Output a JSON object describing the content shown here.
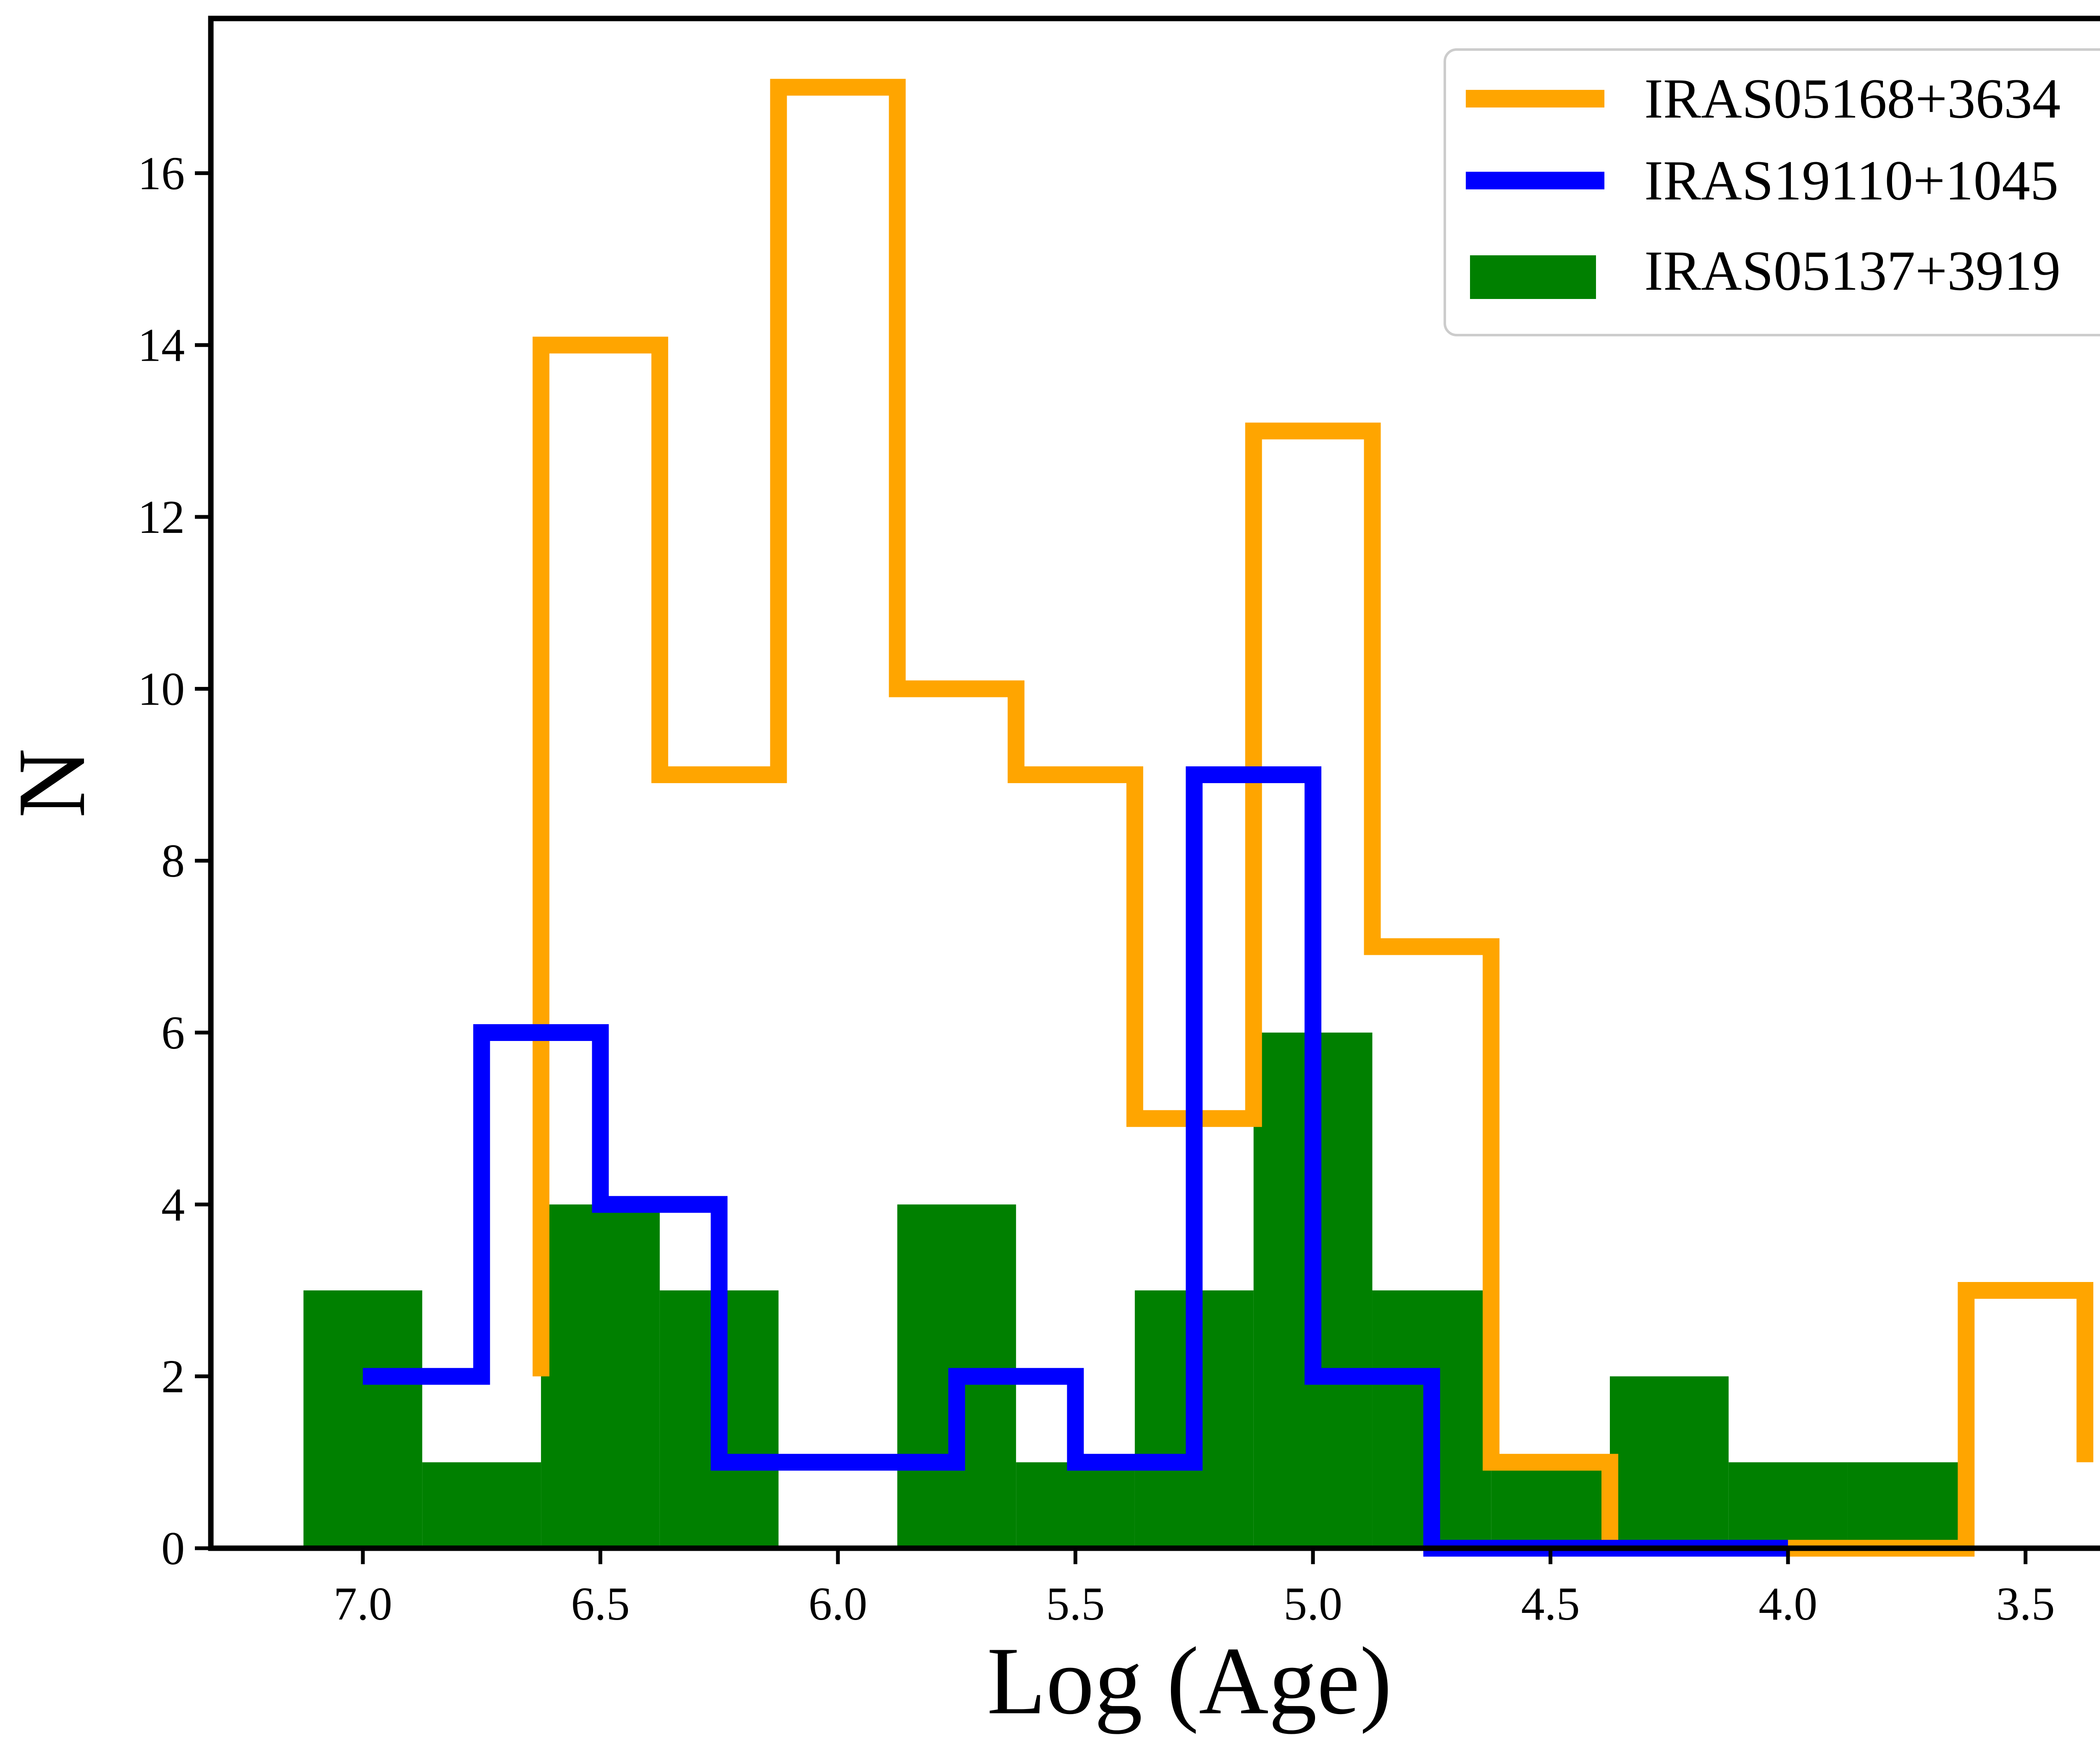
{
  "chart_data": {
    "type": "histogram",
    "xlabel": "Log (Age)",
    "ylabel": "N",
    "xlim": [
      7.32,
      3.2
    ],
    "ylim": [
      0,
      17.8
    ],
    "x_ticks": [
      7.0,
      6.5,
      6.0,
      5.5,
      5.0,
      4.5,
      4.0,
      3.5
    ],
    "x_tick_labels": [
      "7.0",
      "6.5",
      "6.0",
      "5.5",
      "5.0",
      "4.5",
      "4.0",
      "3.5"
    ],
    "y_ticks": [
      0,
      2,
      4,
      6,
      8,
      10,
      12,
      14,
      16
    ],
    "y_tick_labels": [
      "0",
      "2",
      "4",
      "6",
      "8",
      "10",
      "12",
      "14",
      "16"
    ],
    "legend_position": "top-right",
    "series": [
      {
        "name": "IRAS05168+3634",
        "style": "step",
        "color": "#FFA500",
        "bin_edges": [
          6.625,
          6.375,
          6.125,
          5.875,
          5.625,
          5.375,
          5.125,
          4.875,
          4.625,
          4.375,
          4.125,
          3.875,
          3.625,
          3.375
        ],
        "counts": [
          14,
          9,
          17,
          10,
          9,
          5,
          13,
          7,
          1,
          0,
          0,
          0,
          3
        ],
        "start_value": 2,
        "end_value": 1
      },
      {
        "name": "IRAS19110+1045",
        "style": "step",
        "color": "#0000FF",
        "bin_edges": [
          7.0,
          6.75,
          6.5,
          6.25,
          6.0,
          5.75,
          5.5,
          5.25,
          5.0,
          4.75,
          4.5,
          4.25,
          4.0
        ],
        "counts": [
          2,
          6,
          4,
          1,
          1,
          2,
          1,
          9,
          2,
          0,
          0,
          0
        ]
      },
      {
        "name": "IRAS05137+3919",
        "style": "bar",
        "color": "#008000",
        "bin_edges": [
          7.125,
          6.875,
          6.625,
          6.375,
          6.125,
          5.875,
          5.625,
          5.375,
          5.125,
          4.875,
          4.625,
          4.375,
          4.125,
          3.875,
          3.625
        ],
        "counts": [
          3,
          1,
          4,
          3,
          0,
          4,
          1,
          3,
          6,
          3,
          1,
          2,
          1,
          1
        ]
      }
    ]
  }
}
